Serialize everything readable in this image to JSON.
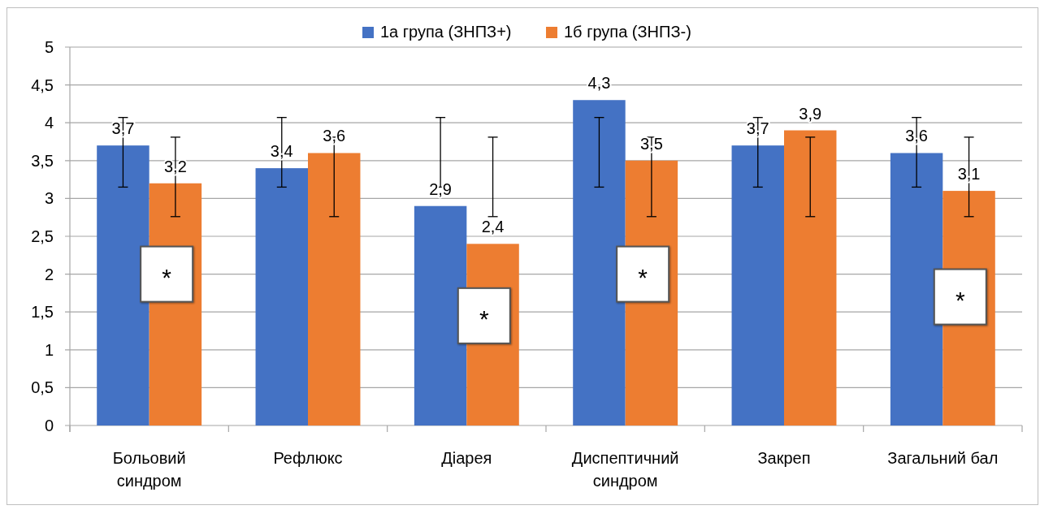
{
  "chart_data": {
    "type": "bar",
    "categories": [
      "Больовий синдром",
      "Рефлюкс",
      "Діарея",
      "Диспептичний синдром",
      "Закреп",
      "Загальний бал"
    ],
    "series": [
      {
        "name": "1а група (ЗНПЗ+)",
        "color": "#4472c4",
        "values": [
          3.7,
          3.4,
          2.9,
          4.3,
          3.7,
          3.6
        ],
        "value_labels": [
          "3,7",
          "3,4",
          "2,9",
          "4,3",
          "3,7",
          "3,6"
        ],
        "errors": [
          [
            3.15,
            4.07
          ],
          [
            3.15,
            4.07
          ],
          [
            3.15,
            4.07
          ],
          [
            3.15,
            4.07
          ],
          [
            3.15,
            4.07
          ],
          [
            3.15,
            4.07
          ]
        ]
      },
      {
        "name": "1б група (ЗНПЗ-)",
        "color": "#ed7d31",
        "values": [
          3.2,
          3.6,
          2.4,
          3.5,
          3.9,
          3.1
        ],
        "value_labels": [
          "3,2",
          "3,6",
          "2,4",
          "3,5",
          "3,9",
          "3,1"
        ],
        "errors": [
          [
            2.76,
            3.81
          ],
          [
            2.76,
            3.81
          ],
          [
            2.76,
            3.81
          ],
          [
            2.76,
            3.81
          ],
          [
            2.76,
            3.81
          ],
          [
            2.76,
            3.81
          ]
        ]
      }
    ],
    "ylim": [
      0,
      5
    ],
    "yticks": [
      0,
      {
        "value": 0.5,
        "label": "0,5"
      },
      1,
      {
        "value": 1.5,
        "label": "1,5"
      },
      2,
      {
        "value": 2.5,
        "label": "2,5"
      },
      3,
      {
        "value": 3.5,
        "label": "3,5"
      },
      4,
      {
        "value": 4.5,
        "label": "4,5"
      },
      5
    ],
    "grid": "y",
    "legend": "top",
    "annotations": [
      {
        "text": "*",
        "x": "Больовий синдром",
        "y": 2.0
      },
      {
        "text": "*",
        "x": "Діарея",
        "y": 1.45
      },
      {
        "text": "*",
        "x": "Диспептичний синдром",
        "y": 2.0
      },
      {
        "text": "*",
        "x": "Загальний бал",
        "y": 1.7
      }
    ]
  }
}
